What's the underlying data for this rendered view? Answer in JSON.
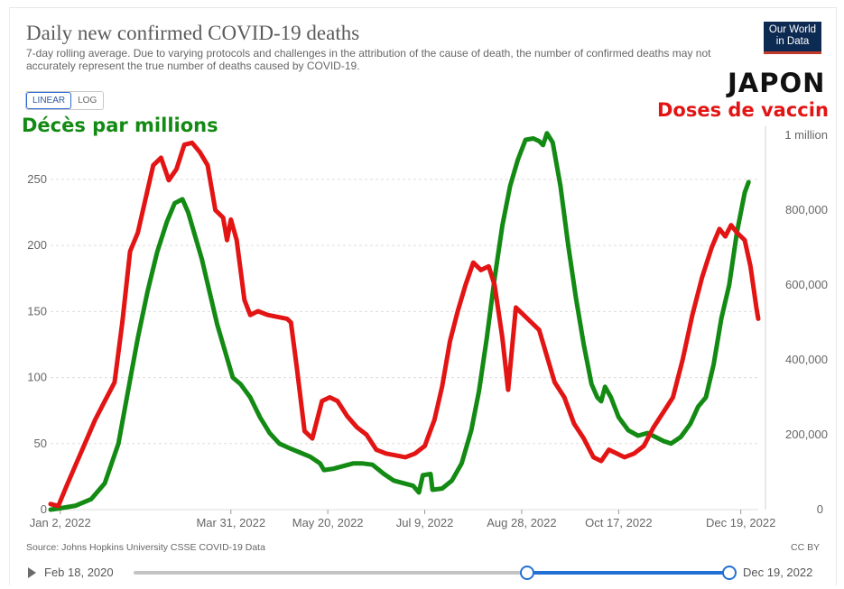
{
  "header": {
    "title": "Daily new confirmed COVID-19 deaths",
    "subtitle": "7-day rolling average. Due to varying protocols and challenges in the attribution of the cause of death, the number of confirmed deaths may not accurately represent the true number of deaths caused by COVID-19.",
    "logo_line1": "Our World",
    "logo_line2": "in Data"
  },
  "controls": {
    "linear_label": "LINEAR",
    "log_label": "LOG",
    "selected": "LINEAR"
  },
  "annotations": {
    "country": "JAPON",
    "right_series_label": "Doses de vaccin",
    "left_series_label": "Décès par millions"
  },
  "footer": {
    "source": "Source: Johns Hopkins University CSSE COVID-19 Data",
    "license": "CC BY",
    "timeline_start": "Feb 18, 2020",
    "timeline_end": "Dec 19, 2022"
  },
  "colors": {
    "deaths": "#138a13",
    "doses": "#e31414",
    "grid": "#dddddd",
    "accent": "#2270d3"
  },
  "chart_data": {
    "type": "line",
    "x_tick_labels": [
      "Jan 2, 2022",
      "Mar 31, 2022",
      "May 20, 2022",
      "Jul 9, 2022",
      "Aug 28, 2022",
      "Oct 17, 2022",
      "Dec 19, 2022"
    ],
    "x_tick_dates": [
      "2022-01-02",
      "2022-03-31",
      "2022-05-20",
      "2022-07-09",
      "2022-08-28",
      "2022-10-17",
      "2022-12-19"
    ],
    "y_left": {
      "ticks": [
        0,
        50,
        100,
        150,
        200,
        250
      ],
      "tick_labels": [
        "0",
        "50",
        "100",
        "150",
        "200",
        "250"
      ],
      "range": [
        0,
        280
      ]
    },
    "y_right": {
      "ticks": [
        0,
        200000,
        400000,
        600000,
        800000,
        1000000
      ],
      "tick_labels": [
        "0",
        "200,000",
        "400,000",
        "600,000",
        "800,000",
        "1 million"
      ],
      "range": [
        0,
        1000000
      ]
    },
    "grid": true,
    "series": [
      {
        "name": "Décès par millions",
        "axis": "left",
        "color": "#138a13",
        "points": [
          [
            "2021-12-28",
            0
          ],
          [
            "2022-01-02",
            1
          ],
          [
            "2022-01-10",
            3
          ],
          [
            "2022-01-18",
            8
          ],
          [
            "2022-01-25",
            20
          ],
          [
            "2022-02-01",
            50
          ],
          [
            "2022-02-06",
            90
          ],
          [
            "2022-02-11",
            130
          ],
          [
            "2022-02-16",
            165
          ],
          [
            "2022-02-21",
            195
          ],
          [
            "2022-02-26",
            218
          ],
          [
            "2022-03-02",
            232
          ],
          [
            "2022-03-06",
            235
          ],
          [
            "2022-03-09",
            225
          ],
          [
            "2022-03-12",
            210
          ],
          [
            "2022-03-16",
            190
          ],
          [
            "2022-03-20",
            165
          ],
          [
            "2022-03-24",
            140
          ],
          [
            "2022-03-28",
            120
          ],
          [
            "2022-04-01",
            100
          ],
          [
            "2022-04-05",
            95
          ],
          [
            "2022-04-10",
            85
          ],
          [
            "2022-04-15",
            70
          ],
          [
            "2022-04-20",
            58
          ],
          [
            "2022-04-25",
            50
          ],
          [
            "2022-05-01",
            46
          ],
          [
            "2022-05-06",
            43
          ],
          [
            "2022-05-11",
            40
          ],
          [
            "2022-05-16",
            35
          ],
          [
            "2022-05-18",
            30
          ],
          [
            "2022-05-23",
            31
          ],
          [
            "2022-05-28",
            33
          ],
          [
            "2022-06-02",
            35
          ],
          [
            "2022-06-07",
            35
          ],
          [
            "2022-06-12",
            34
          ],
          [
            "2022-06-18",
            27
          ],
          [
            "2022-06-23",
            22
          ],
          [
            "2022-06-28",
            20
          ],
          [
            "2022-07-03",
            18
          ],
          [
            "2022-07-06",
            13
          ],
          [
            "2022-07-08",
            26
          ],
          [
            "2022-07-12",
            27
          ],
          [
            "2022-07-13",
            15
          ],
          [
            "2022-07-18",
            16
          ],
          [
            "2022-07-23",
            22
          ],
          [
            "2022-07-28",
            35
          ],
          [
            "2022-08-02",
            60
          ],
          [
            "2022-08-06",
            90
          ],
          [
            "2022-08-10",
            130
          ],
          [
            "2022-08-14",
            175
          ],
          [
            "2022-08-18",
            215
          ],
          [
            "2022-08-22",
            245
          ],
          [
            "2022-08-26",
            265
          ],
          [
            "2022-08-30",
            280
          ],
          [
            "2022-09-03",
            281
          ],
          [
            "2022-09-06",
            279
          ],
          [
            "2022-09-08",
            276
          ],
          [
            "2022-09-10",
            285
          ],
          [
            "2022-09-13",
            278
          ],
          [
            "2022-09-17",
            245
          ],
          [
            "2022-09-21",
            200
          ],
          [
            "2022-09-25",
            160
          ],
          [
            "2022-09-29",
            125
          ],
          [
            "2022-10-03",
            95
          ],
          [
            "2022-10-06",
            85
          ],
          [
            "2022-10-08",
            82
          ],
          [
            "2022-10-10",
            93
          ],
          [
            "2022-10-13",
            85
          ],
          [
            "2022-10-17",
            70
          ],
          [
            "2022-10-22",
            60
          ],
          [
            "2022-10-27",
            56
          ],
          [
            "2022-11-01",
            58
          ],
          [
            "2022-11-05",
            55
          ],
          [
            "2022-11-09",
            52
          ],
          [
            "2022-11-13",
            50
          ],
          [
            "2022-11-18",
            55
          ],
          [
            "2022-11-23",
            65
          ],
          [
            "2022-11-27",
            78
          ],
          [
            "2022-12-01",
            85
          ],
          [
            "2022-12-05",
            110
          ],
          [
            "2022-12-09",
            145
          ],
          [
            "2022-12-13",
            170
          ],
          [
            "2022-12-17",
            210
          ],
          [
            "2022-12-21",
            240
          ],
          [
            "2022-12-23",
            248
          ]
        ]
      },
      {
        "name": "Doses de vaccin",
        "axis": "right",
        "color": "#e31414",
        "points": [
          [
            "2021-12-28",
            15000
          ],
          [
            "2022-01-01",
            10000
          ],
          [
            "2022-01-05",
            60000
          ],
          [
            "2022-01-10",
            120000
          ],
          [
            "2022-01-15",
            180000
          ],
          [
            "2022-01-20",
            240000
          ],
          [
            "2022-01-25",
            290000
          ],
          [
            "2022-01-30",
            340000
          ],
          [
            "2022-02-03",
            500000
          ],
          [
            "2022-02-07",
            690000
          ],
          [
            "2022-02-11",
            740000
          ],
          [
            "2022-02-15",
            830000
          ],
          [
            "2022-02-19",
            920000
          ],
          [
            "2022-02-23",
            940000
          ],
          [
            "2022-02-27",
            880000
          ],
          [
            "2022-03-03",
            910000
          ],
          [
            "2022-03-07",
            975000
          ],
          [
            "2022-03-11",
            980000
          ],
          [
            "2022-03-15",
            955000
          ],
          [
            "2022-03-19",
            920000
          ],
          [
            "2022-03-23",
            800000
          ],
          [
            "2022-03-27",
            780000
          ],
          [
            "2022-03-29",
            720000
          ],
          [
            "2022-03-31",
            775000
          ],
          [
            "2022-04-03",
            720000
          ],
          [
            "2022-04-07",
            560000
          ],
          [
            "2022-04-10",
            520000
          ],
          [
            "2022-04-14",
            530000
          ],
          [
            "2022-04-19",
            520000
          ],
          [
            "2022-04-24",
            515000
          ],
          [
            "2022-04-29",
            510000
          ],
          [
            "2022-05-01",
            500000
          ],
          [
            "2022-05-04",
            380000
          ],
          [
            "2022-05-08",
            210000
          ],
          [
            "2022-05-12",
            190000
          ],
          [
            "2022-05-17",
            290000
          ],
          [
            "2022-05-21",
            300000
          ],
          [
            "2022-05-25",
            290000
          ],
          [
            "2022-05-30",
            250000
          ],
          [
            "2022-06-04",
            220000
          ],
          [
            "2022-06-09",
            200000
          ],
          [
            "2022-06-14",
            160000
          ],
          [
            "2022-06-19",
            150000
          ],
          [
            "2022-06-24",
            145000
          ],
          [
            "2022-06-29",
            140000
          ],
          [
            "2022-07-04",
            150000
          ],
          [
            "2022-07-09",
            170000
          ],
          [
            "2022-07-14",
            240000
          ],
          [
            "2022-07-18",
            330000
          ],
          [
            "2022-07-22",
            450000
          ],
          [
            "2022-07-26",
            530000
          ],
          [
            "2022-07-30",
            600000
          ],
          [
            "2022-08-03",
            660000
          ],
          [
            "2022-08-07",
            640000
          ],
          [
            "2022-08-11",
            650000
          ],
          [
            "2022-08-14",
            600000
          ],
          [
            "2022-08-18",
            460000
          ],
          [
            "2022-08-21",
            320000
          ],
          [
            "2022-08-25",
            540000
          ],
          [
            "2022-08-29",
            520000
          ],
          [
            "2022-09-02",
            500000
          ],
          [
            "2022-09-06",
            480000
          ],
          [
            "2022-09-10",
            410000
          ],
          [
            "2022-09-14",
            340000
          ],
          [
            "2022-09-19",
            300000
          ],
          [
            "2022-09-24",
            230000
          ],
          [
            "2022-09-29",
            190000
          ],
          [
            "2022-10-04",
            140000
          ],
          [
            "2022-10-08",
            130000
          ],
          [
            "2022-10-12",
            160000
          ],
          [
            "2022-10-16",
            150000
          ],
          [
            "2022-10-20",
            140000
          ],
          [
            "2022-10-25",
            150000
          ],
          [
            "2022-10-30",
            170000
          ],
          [
            "2022-11-04",
            220000
          ],
          [
            "2022-11-09",
            260000
          ],
          [
            "2022-11-14",
            300000
          ],
          [
            "2022-11-19",
            400000
          ],
          [
            "2022-11-24",
            520000
          ],
          [
            "2022-11-29",
            620000
          ],
          [
            "2022-12-04",
            700000
          ],
          [
            "2022-12-08",
            750000
          ],
          [
            "2022-12-11",
            730000
          ],
          [
            "2022-12-14",
            760000
          ],
          [
            "2022-12-17",
            740000
          ],
          [
            "2022-12-21",
            720000
          ],
          [
            "2022-12-24",
            650000
          ],
          [
            "2022-12-27",
            540000
          ],
          [
            "2022-12-28",
            510000
          ]
        ]
      }
    ]
  }
}
